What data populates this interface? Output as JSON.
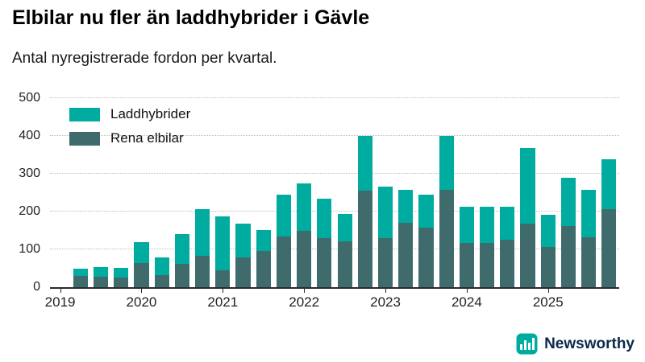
{
  "title": "Elbilar nu fler än laddhybrider i Gävle",
  "subtitle": "Antal nyregistrerade fordon per kvartal.",
  "branding": {
    "name": "Newsworthy",
    "icon_color": "#00ab9f",
    "text_color": "#0e2a4a"
  },
  "colors": {
    "laddhybrider": "#00ab9f",
    "rena_elbilar": "#3f6b6d",
    "axis": "#2b2b2b",
    "grid": "#bdbdbd"
  },
  "chart_data": {
    "type": "bar",
    "stacked": true,
    "title": "Elbilar nu fler än laddhybrider i Gävle",
    "subtitle": "Antal nyregistrerade fordon per kvartal.",
    "grid": true,
    "legend_position": "top-left",
    "ylim": [
      0,
      500
    ],
    "y_ticks": [
      0,
      100,
      200,
      300,
      400,
      500
    ],
    "x_tick_labels": [
      "2019",
      "2020",
      "2021",
      "2022",
      "2023",
      "2024",
      "2025"
    ],
    "quarters": [
      "2019 Q2",
      "2019 Q3",
      "2019 Q4",
      "2020 Q1",
      "2020 Q2",
      "2020 Q3",
      "2020 Q4",
      "2021 Q1",
      "2021 Q2",
      "2021 Q3",
      "2021 Q4",
      "2022 Q1",
      "2022 Q2",
      "2022 Q3",
      "2022 Q4",
      "2023 Q1",
      "2023 Q2",
      "2023 Q3",
      "2023 Q4",
      "2024 Q1",
      "2024 Q2",
      "2024 Q3",
      "2024 Q4",
      "2025 Q1",
      "2025 Q2",
      "2025 Q3",
      "2025 Q4"
    ],
    "series": [
      {
        "name": "Laddhybrider",
        "color": "#00ab9f",
        "stack_position": "top",
        "values": [
          20,
          25,
          26,
          55,
          46,
          78,
          123,
          142,
          90,
          55,
          110,
          126,
          104,
          73,
          145,
          137,
          87,
          88,
          142,
          96,
          97,
          87,
          200,
          85,
          128,
          124,
          131
        ]
      },
      {
        "name": "Rena elbilar",
        "color": "#3f6b6d",
        "stack_position": "bottom",
        "values": [
          30,
          28,
          25,
          64,
          33,
          62,
          83,
          45,
          78,
          96,
          135,
          148,
          130,
          121,
          255,
          129,
          170,
          157,
          258,
          117,
          116,
          126,
          168,
          106,
          161,
          133,
          207
        ]
      }
    ]
  }
}
